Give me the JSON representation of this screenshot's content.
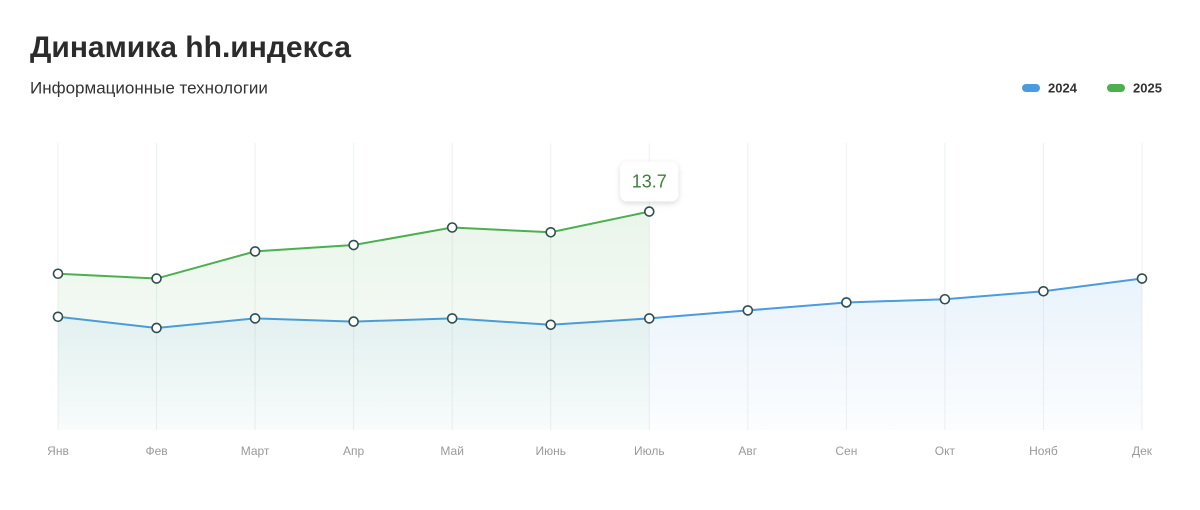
{
  "chart_data": {
    "type": "line",
    "title": "Динамика hh.индекса",
    "subtitle": "Информационные технологии",
    "categories": [
      "Янв",
      "Фев",
      "Март",
      "Апр",
      "Май",
      "Июнь",
      "Июль",
      "Авг",
      "Сен",
      "Окт",
      "Нояб",
      "Дек"
    ],
    "series": [
      {
        "name": "2024",
        "color": "#4a9be0",
        "values": [
          7.1,
          6.4,
          7.0,
          6.8,
          7.0,
          6.6,
          7.0,
          7.5,
          8.0,
          8.2,
          8.7,
          9.5
        ]
      },
      {
        "name": "2025",
        "color": "#4caf50",
        "values": [
          9.8,
          9.5,
          11.2,
          11.6,
          12.7,
          12.4,
          13.7,
          null,
          null,
          null,
          null,
          null
        ]
      }
    ],
    "ylim": [
      0,
      18
    ],
    "grid": true,
    "legend": "top-right"
  }
}
